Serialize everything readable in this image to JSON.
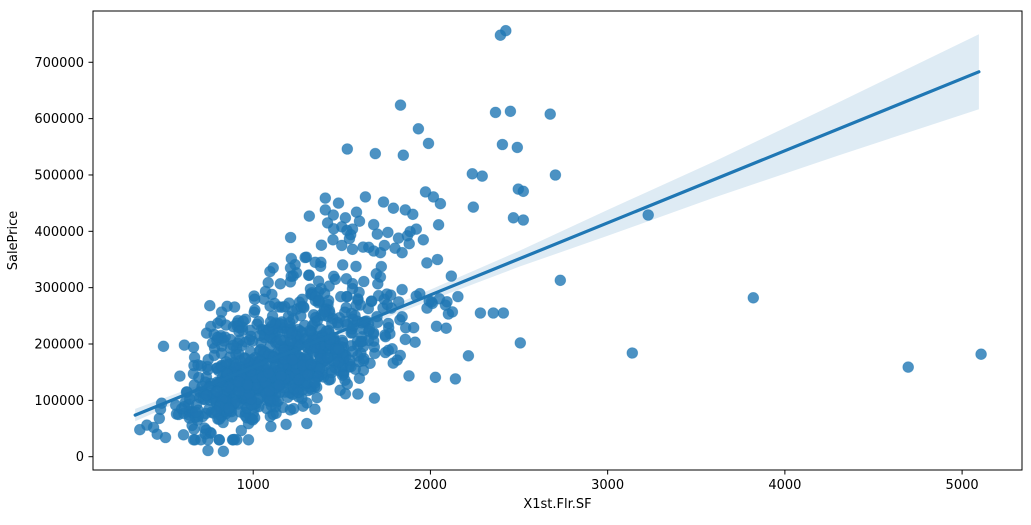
{
  "chart_data": {
    "type": "scatter",
    "title": "",
    "xlabel": "X1st.Flr.SF",
    "ylabel": "SalePrice",
    "grid": false,
    "legend": null,
    "xlim": [
      96,
      5338
    ],
    "ylim": [
      -23600,
      791000
    ],
    "x_ticks": [
      1000,
      2000,
      3000,
      4000,
      5000
    ],
    "y_ticks": [
      0,
      100000,
      200000,
      300000,
      400000,
      500000,
      600000,
      700000
    ],
    "marker": {
      "color": "#1f77b4",
      "alpha": 0.8,
      "radius": 5.4
    },
    "regression_line": {
      "color": "#1f77b4",
      "width": 3.2,
      "x_start": 334,
      "x_end": 5095,
      "intercept": 31000,
      "slope": 128
    },
    "confidence_band": {
      "color": "#1f77b4",
      "alpha": 0.15,
      "profile_x_halfwidth": [
        [
          334,
          11000
        ],
        [
          700,
          7000
        ],
        [
          1150,
          5500
        ],
        [
          1600,
          8000
        ],
        [
          2000,
          9600
        ],
        [
          2500,
          14000
        ],
        [
          3000,
          23000
        ],
        [
          3600,
          32000
        ],
        [
          4300,
          47000
        ],
        [
          5095,
          66500
        ]
      ]
    },
    "outlier_points": [
      [
        2395,
        748000
      ],
      [
        2425,
        756000
      ],
      [
        1831,
        624000
      ],
      [
        2367,
        611000
      ],
      [
        2451,
        613000
      ],
      [
        2676,
        608000
      ],
      [
        1932,
        582000
      ],
      [
        1989,
        556000
      ],
      [
        2406,
        554000
      ],
      [
        2490,
        549000
      ],
      [
        1531,
        546000
      ],
      [
        1689,
        538000
      ],
      [
        1847,
        535000
      ],
      [
        2705,
        500000
      ],
      [
        2236,
        502000
      ],
      [
        2292,
        498000
      ],
      [
        2496,
        475000
      ],
      [
        2524,
        471000
      ],
      [
        1972,
        470000
      ],
      [
        2017,
        461000
      ],
      [
        1633,
        461000
      ],
      [
        1407,
        459000
      ],
      [
        1481,
        450000
      ],
      [
        1735,
        452000
      ],
      [
        2056,
        449000
      ],
      [
        1791,
        441000
      ],
      [
        1858,
        438000
      ],
      [
        2242,
        443000
      ],
      [
        1407,
        438000
      ],
      [
        1452,
        429000
      ],
      [
        3229,
        429000
      ],
      [
        2468,
        424000
      ],
      [
        2524,
        420000
      ],
      [
        1420,
        415000
      ],
      [
        1520,
        424000
      ],
      [
        1600,
        418000
      ],
      [
        1680,
        412000
      ],
      [
        1500,
        408000
      ],
      [
        1920,
        404000
      ],
      [
        1560,
        404000
      ],
      [
        1550,
        394000
      ],
      [
        1450,
        385000
      ],
      [
        1700,
        395000
      ],
      [
        1760,
        398000
      ],
      [
        1820,
        388000
      ],
      [
        1870,
        392000
      ],
      [
        1960,
        385000
      ],
      [
        1500,
        375000
      ],
      [
        1560,
        368000
      ],
      [
        1620,
        372000
      ],
      [
        1680,
        365000
      ],
      [
        1740,
        375000
      ],
      [
        1800,
        370000
      ],
      [
        1840,
        362000
      ],
      [
        1880,
        378000
      ],
      [
        1300,
        354000
      ],
      [
        1350,
        345000
      ],
      [
        1380,
        338000
      ],
      [
        1980,
        344000
      ],
      [
        2040,
        350000
      ],
      [
        2733,
        313000
      ],
      [
        3822,
        282000
      ],
      [
        2124,
        257000
      ],
      [
        2282,
        255000
      ],
      [
        2355,
        255000
      ],
      [
        2412,
        255000
      ],
      [
        2011,
        272000
      ],
      [
        2085,
        269000
      ],
      [
        2507,
        202000
      ],
      [
        2214,
        179000
      ],
      [
        3139,
        184000
      ],
      [
        2141,
        138000
      ],
      [
        2028,
        141000
      ],
      [
        4696,
        159000
      ],
      [
        5107,
        182000
      ],
      [
        494,
        196000
      ],
      [
        612,
        198000
      ],
      [
        745,
        11000
      ],
      [
        832,
        9500
      ],
      [
        360,
        48000
      ],
      [
        400,
        56000
      ],
      [
        438,
        52000
      ],
      [
        458,
        40000
      ],
      [
        470,
        68000
      ],
      [
        483,
        95000
      ],
      [
        505,
        34000
      ]
    ],
    "cluster": {
      "description": "dense cloud of ~900 unresolvable overlapping sales",
      "seed": 11,
      "count": 900,
      "x_lognorm_mu": 7.02,
      "x_lognorm_sigma": 0.26,
      "x_min": 334,
      "x_max": 2250,
      "main_noise_mu": -26000,
      "main_noise_sd": 38000,
      "skew_frac": 0.17,
      "skew_mu": 35000,
      "skew_sd": 65000,
      "price_min": 30000,
      "price_max": 470000
    },
    "axis_color": "#000000",
    "tick_label_color": "#000000",
    "background_color": "#ffffff"
  }
}
